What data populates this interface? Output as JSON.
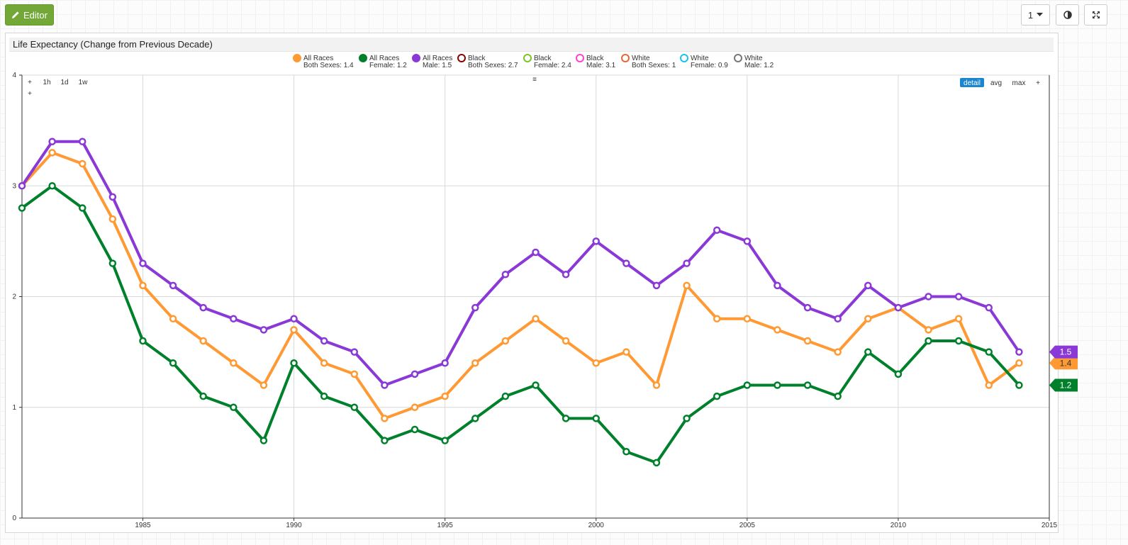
{
  "toolbar": {
    "editor_label": "Editor",
    "page_select_value": "1",
    "contrast_icon": "half-circle-icon",
    "fullscreen_icon": "expand-icon"
  },
  "panel": {
    "title": "Life Expectancy (Change from Previous Decade)"
  },
  "controls": {
    "left": [
      "+",
      "1h",
      "1d",
      "1w",
      "+"
    ],
    "menu_icon": "≡",
    "right": [
      "detail",
      "avg",
      "max",
      "+"
    ],
    "active": "detail"
  },
  "chart_data": {
    "type": "line",
    "title": "Life Expectancy (Change from Previous Decade)",
    "xlim": [
      1981,
      2015
    ],
    "ylim": [
      0,
      4
    ],
    "x_ticks": [
      1985,
      1990,
      1995,
      2000,
      2005,
      2010,
      2015
    ],
    "y_ticks": [
      0,
      1,
      2,
      3,
      4
    ],
    "grid": true,
    "legend_position": "top",
    "x": [
      1981,
      1982,
      1983,
      1984,
      1985,
      1986,
      1987,
      1988,
      1989,
      1990,
      1991,
      1992,
      1993,
      1994,
      1995,
      1996,
      1997,
      1998,
      1999,
      2000,
      2001,
      2002,
      2003,
      2004,
      2005,
      2006,
      2007,
      2008,
      2009,
      2010,
      2011,
      2012,
      2013,
      2014
    ],
    "legend": [
      {
        "line1": "All Races",
        "line2": "Both Sexes: 1.4",
        "color": "#ff9933",
        "filled": true
      },
      {
        "line1": "All Races",
        "line2": "Female: 1.2",
        "color": "#00802b",
        "filled": true
      },
      {
        "line1": "All Races",
        "line2": "Male: 1.5",
        "color": "#8a38d6",
        "filled": true
      },
      {
        "line1": "Black",
        "line2": "Both Sexes: 2.7",
        "color": "#8b0000",
        "filled": false
      },
      {
        "line1": "Black",
        "line2": "Female: 2.4",
        "color": "#7cc623",
        "filled": false
      },
      {
        "line1": "Black",
        "line2": "Male: 3.1",
        "color": "#ff3fd8",
        "filled": false
      },
      {
        "line1": "White",
        "line2": "Both Sexes: 1",
        "color": "#e86636",
        "filled": false
      },
      {
        "line1": "White",
        "line2": "Female: 0.9",
        "color": "#19c0f0",
        "filled": false
      },
      {
        "line1": "White",
        "line2": "Male: 1.2",
        "color": "#777777",
        "filled": false
      }
    ],
    "series": [
      {
        "name": "All Races Both Sexes",
        "color": "#ff9933",
        "values": [
          3.0,
          3.3,
          3.2,
          2.7,
          2.1,
          1.8,
          1.6,
          1.4,
          1.2,
          1.7,
          1.4,
          1.3,
          0.9,
          1.0,
          1.1,
          1.4,
          1.6,
          1.8,
          1.6,
          1.4,
          1.5,
          1.2,
          2.1,
          1.8,
          1.8,
          1.7,
          1.6,
          1.5,
          1.8,
          1.9,
          1.7,
          1.8,
          1.2,
          1.4
        ],
        "end_label": "1.4"
      },
      {
        "name": "All Races Female",
        "color": "#00802b",
        "values": [
          2.8,
          3.0,
          2.8,
          2.3,
          1.6,
          1.4,
          1.1,
          1.0,
          0.7,
          1.4,
          1.1,
          1.0,
          0.7,
          0.8,
          0.7,
          0.9,
          1.1,
          1.2,
          0.9,
          0.9,
          0.6,
          0.5,
          0.9,
          1.1,
          1.2,
          1.2,
          1.2,
          1.1,
          1.5,
          1.3,
          1.6,
          1.6,
          1.5,
          1.2
        ],
        "end_label": "1.2"
      },
      {
        "name": "All Races Male",
        "color": "#8a38d6",
        "values": [
          3.0,
          3.4,
          3.4,
          2.9,
          2.3,
          2.1,
          1.9,
          1.8,
          1.7,
          1.8,
          1.6,
          1.5,
          1.2,
          1.3,
          1.4,
          1.9,
          2.2,
          2.4,
          2.2,
          2.5,
          2.3,
          2.1,
          2.3,
          2.6,
          2.5,
          2.1,
          1.9,
          1.8,
          2.1,
          1.9,
          2.0,
          2.0,
          1.9,
          1.5
        ],
        "end_label": "1.5"
      }
    ]
  }
}
